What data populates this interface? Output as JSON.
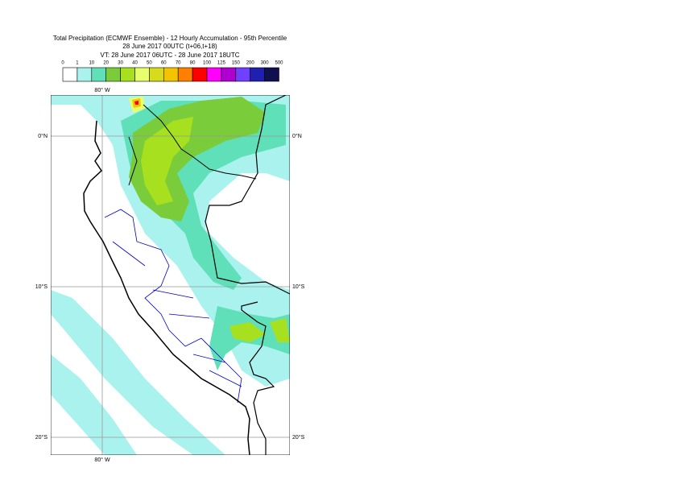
{
  "header": {
    "title_lines": [
      "Total Precipitation (ECMWF Ensemble) - 12 Hourly Accumulation - 95th Percentile",
      "28 June 2017 00UTC (t+06,t+18)",
      "VT: 28 June 2017 06UTC - 28 June 2017 18UTC"
    ]
  },
  "colorbar": {
    "levels": [
      0,
      1,
      10,
      20,
      30,
      40,
      50,
      60,
      70,
      80,
      100,
      125,
      150,
      200,
      300,
      500
    ],
    "colors": [
      "#ffffff",
      "#aaf2ee",
      "#5fe0b8",
      "#7acc3a",
      "#a6e01e",
      "#e6ff6a",
      "#d6dc1a",
      "#f5c400",
      "#ff8000",
      "#ff0000",
      "#ff00ff",
      "#b000d0",
      "#7040ff",
      "#2020b0",
      "#101050"
    ]
  },
  "map": {
    "lon_label": "80° W",
    "lat_labels": [
      "0°N",
      "10°S",
      "20°S"
    ]
  }
}
